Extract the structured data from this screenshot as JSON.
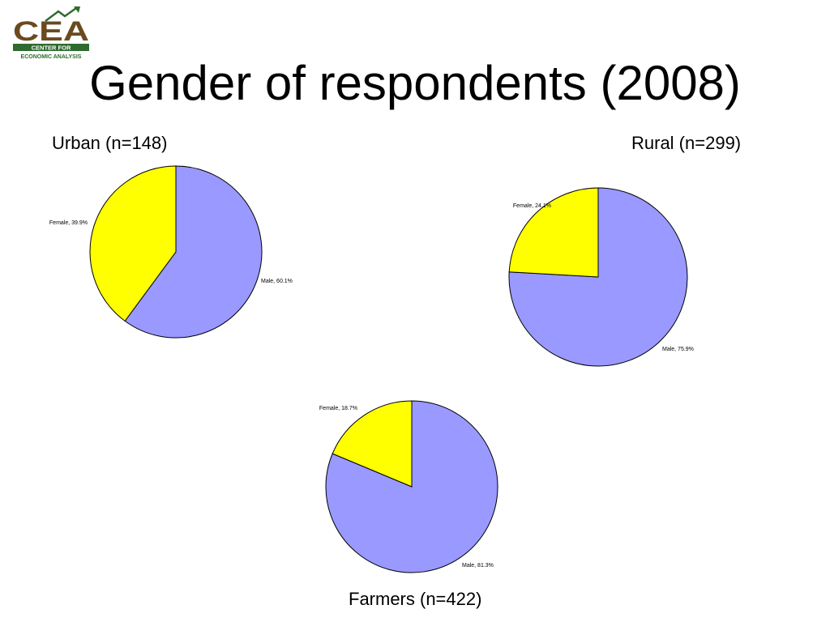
{
  "slide": {
    "title": "Gender of respondents (2008)"
  },
  "logo": {
    "letters": "CEA",
    "line1": "CENTER FOR",
    "line2": "ECONOMIC ANALYSIS",
    "colors": {
      "brown": "#6b4a1f",
      "green": "#2e6b2e"
    }
  },
  "chart_data": [
    {
      "type": "pie",
      "title": "Urban (n=148)",
      "series": [
        {
          "name": "Male",
          "value": 60.1,
          "label": "Male, 60.1%",
          "color": "#9999ff"
        },
        {
          "name": "Female",
          "value": 39.9,
          "label": "Female, 39.9%",
          "color": "#ffff00"
        }
      ],
      "legend": false
    },
    {
      "type": "pie",
      "title": "Rural (n=299)",
      "series": [
        {
          "name": "Male",
          "value": 75.9,
          "label": "Male, 75.9%",
          "color": "#9999ff"
        },
        {
          "name": "Female",
          "value": 24.1,
          "label": "Female, 24.1%",
          "color": "#ffff00"
        }
      ],
      "legend": false
    },
    {
      "type": "pie",
      "title": "Farmers (n=422)",
      "series": [
        {
          "name": "Male",
          "value": 81.3,
          "label": "Male, 81.3%",
          "color": "#9999ff"
        },
        {
          "name": "Female",
          "value": 18.7,
          "label": "Female, 18.7%",
          "color": "#ffff00"
        }
      ],
      "legend": false
    }
  ]
}
